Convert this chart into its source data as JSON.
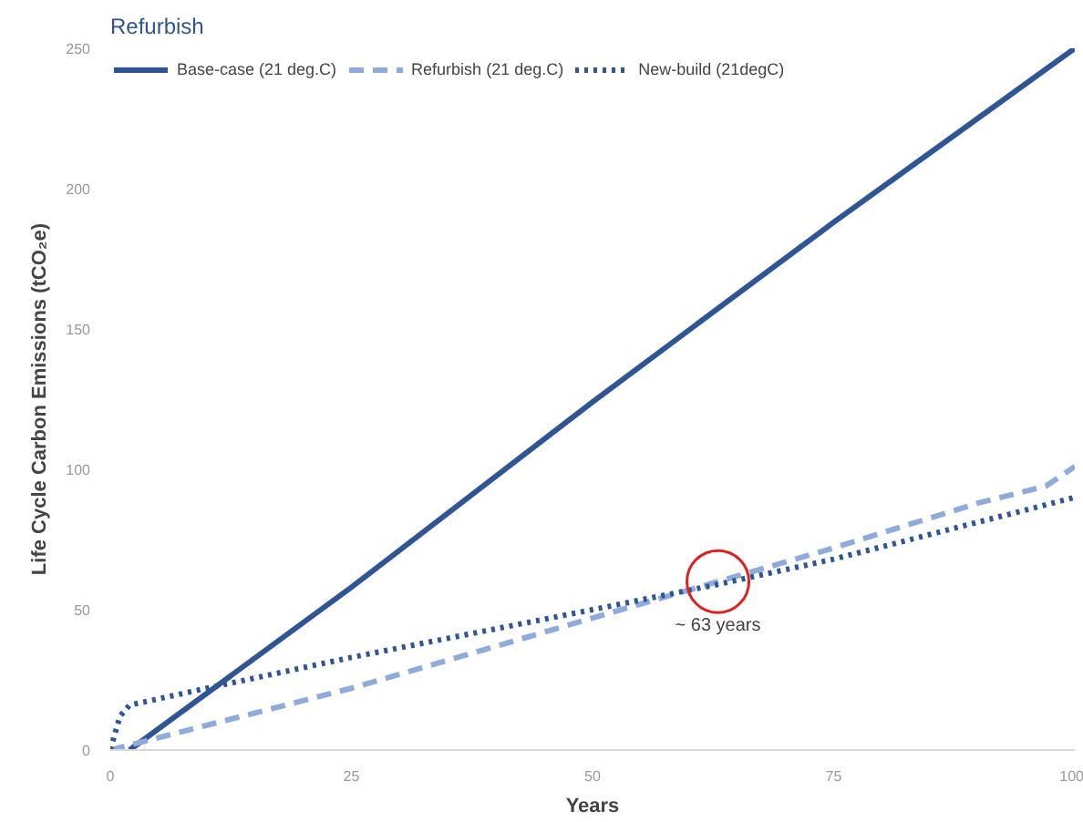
{
  "chart_data": {
    "type": "line",
    "title": "Refurbish",
    "xlabel": "Years",
    "ylabel": "Life Cycle Carbon Emissions (tCO₂e)",
    "xlim": [
      0,
      100
    ],
    "ylim": [
      0,
      250
    ],
    "xticks": [
      0,
      25,
      50,
      75,
      100
    ],
    "yticks": [
      0,
      50,
      100,
      150,
      200,
      250
    ],
    "grid": false,
    "legend": "top",
    "marker": "none",
    "series": [
      {
        "name": "Base-case (21 deg.C)",
        "color": "#2f5597",
        "line_style": "solid",
        "x": [
          2,
          25,
          50,
          75,
          100
        ],
        "values": [
          0,
          58,
          124,
          188,
          250
        ]
      },
      {
        "name": "Refurbish (21 deg.C)",
        "color": "#8faadc",
        "line_style": "dashed",
        "x": [
          0,
          25,
          50,
          63,
          75,
          90,
          97,
          100
        ],
        "values": [
          0,
          22,
          47,
          60,
          72,
          88,
          94,
          101
        ]
      },
      {
        "name": "New-build (21degC)",
        "color": "#2f5597",
        "line_style": "dotted",
        "x": [
          0,
          1,
          2,
          10,
          25,
          50,
          63,
          75,
          100
        ],
        "values": [
          0,
          12,
          16,
          22,
          33,
          50,
          59,
          68,
          90
        ]
      }
    ],
    "annotations": [
      {
        "text": "~ 63 years",
        "x": 63,
        "y": 60
      }
    ]
  }
}
